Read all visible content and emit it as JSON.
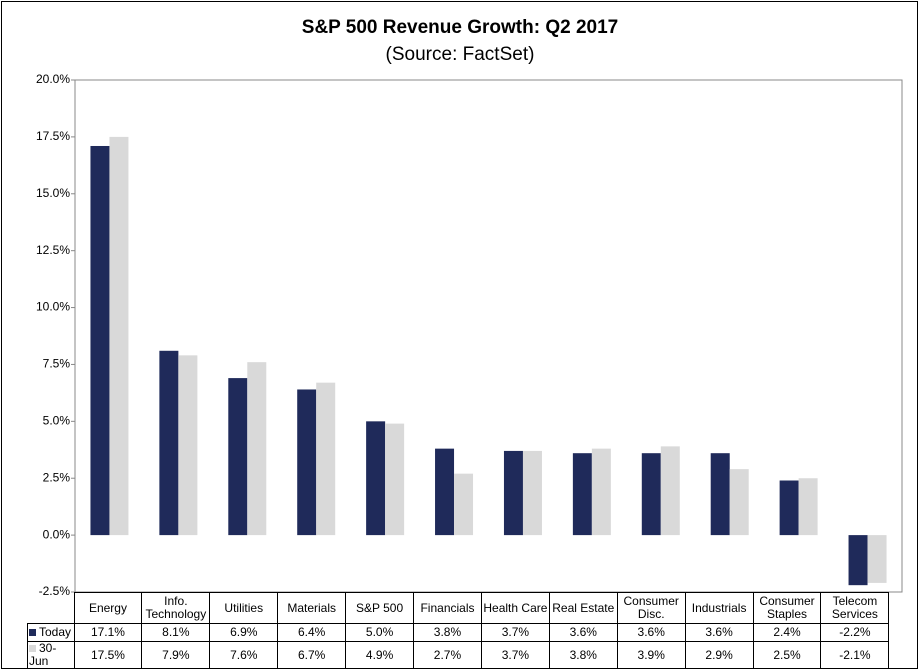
{
  "chart_data": {
    "type": "bar",
    "title": "S&P 500 Revenue Growth: Q2 2017",
    "subtitle": "(Source: FactSet)",
    "categories": [
      "Energy",
      "Info. Technology",
      "Utilities",
      "Materials",
      "S&P 500",
      "Financials",
      "Health Care",
      "Real Estate",
      "Consumer Disc.",
      "Industrials",
      "Consumer Staples",
      "Telecom Services"
    ],
    "series": [
      {
        "name": "Today",
        "color": "#1f2a5a",
        "values": [
          17.1,
          8.1,
          6.9,
          6.4,
          5.0,
          3.8,
          3.7,
          3.6,
          3.6,
          3.6,
          2.4,
          -2.2
        ],
        "value_labels": [
          "17.1%",
          "8.1%",
          "6.9%",
          "6.4%",
          "5.0%",
          "3.8%",
          "3.7%",
          "3.6%",
          "3.6%",
          "3.6%",
          "2.4%",
          "-2.2%"
        ]
      },
      {
        "name": "30-Jun",
        "color": "#d9d9d9",
        "values": [
          17.5,
          7.9,
          7.6,
          6.7,
          4.9,
          2.7,
          3.7,
          3.8,
          3.9,
          2.9,
          2.5,
          -2.1
        ],
        "value_labels": [
          "17.5%",
          "7.9%",
          "7.6%",
          "6.7%",
          "4.9%",
          "2.7%",
          "3.7%",
          "3.8%",
          "3.9%",
          "2.9%",
          "2.5%",
          "-2.1%"
        ]
      }
    ],
    "ylim": [
      -2.5,
      20
    ],
    "yticks": [
      {
        "value": -2.5,
        "label": "-2.5%"
      },
      {
        "value": 0,
        "label": "0.0%"
      },
      {
        "value": 2.5,
        "label": "2.5%"
      },
      {
        "value": 5,
        "label": "5.0%"
      },
      {
        "value": 7.5,
        "label": "7.5%"
      },
      {
        "value": 10,
        "label": "10.0%"
      },
      {
        "value": 12.5,
        "label": "12.5%"
      },
      {
        "value": 15,
        "label": "15.0%"
      },
      {
        "value": 17.5,
        "label": "17.5%"
      },
      {
        "value": 20,
        "label": "20.0%"
      }
    ],
    "grid": false
  }
}
